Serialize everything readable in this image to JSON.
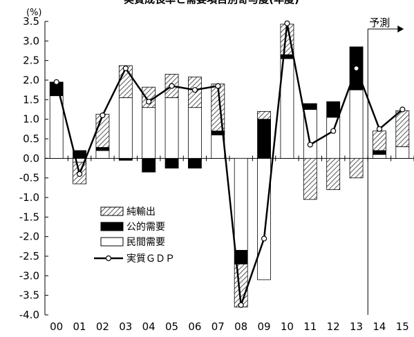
{
  "chart_data": {
    "type": "bar",
    "title": "実質成長率と需要項目別寄与度(年度)",
    "ylabel": "(%)",
    "xlabel": "",
    "ylim": [
      -4.0,
      3.5
    ],
    "y_ticks": [
      "3.5",
      "3.0",
      "2.5",
      "2.0",
      "1.5",
      "1.0",
      "0.5",
      "0.0",
      "-0.5",
      "-1.0",
      "-1.5",
      "-2.0",
      "-2.5",
      "-3.0",
      "-3.5",
      "-4.0"
    ],
    "categories": [
      "00",
      "01",
      "02",
      "03",
      "04",
      "05",
      "06",
      "07",
      "08",
      "09",
      "10",
      "11",
      "12",
      "13",
      "14",
      "15"
    ],
    "stacked": true,
    "series": [
      {
        "name": "民間需要",
        "kind": "bar",
        "color": "#ffffff",
        "values": [
          1.6,
          -0.1,
          0.2,
          1.55,
          1.3,
          1.55,
          1.3,
          0.6,
          -2.35,
          -3.1,
          2.55,
          1.25,
          1.05,
          1.75,
          0.1,
          0.3
        ]
      },
      {
        "name": "公的需要",
        "kind": "bar",
        "color": "#000000",
        "values": [
          0.35,
          0.2,
          0.08,
          -0.05,
          -0.35,
          -0.25,
          -0.25,
          0.1,
          -0.35,
          1.0,
          0.1,
          0.15,
          0.4,
          1.1,
          0.1,
          0.0
        ]
      },
      {
        "name": "純輸出",
        "kind": "bar",
        "color": "hatch",
        "values": [
          0.0,
          -0.55,
          0.85,
          0.82,
          0.52,
          0.6,
          0.78,
          1.2,
          -1.1,
          0.2,
          0.78,
          -1.05,
          -0.8,
          -0.5,
          0.5,
          0.92
        ]
      },
      {
        "name": "実質ＧＤＰ",
        "kind": "line",
        "color": "#000000",
        "values": [
          1.95,
          -0.4,
          1.1,
          2.3,
          1.45,
          1.85,
          1.75,
          1.85,
          -3.75,
          -2.05,
          3.45,
          0.35,
          0.7,
          2.3,
          0.75,
          1.25
        ]
      }
    ],
    "forecast_label": "予測",
    "forecast_start_category": "14",
    "legend_position": "center-left",
    "grid": false
  }
}
